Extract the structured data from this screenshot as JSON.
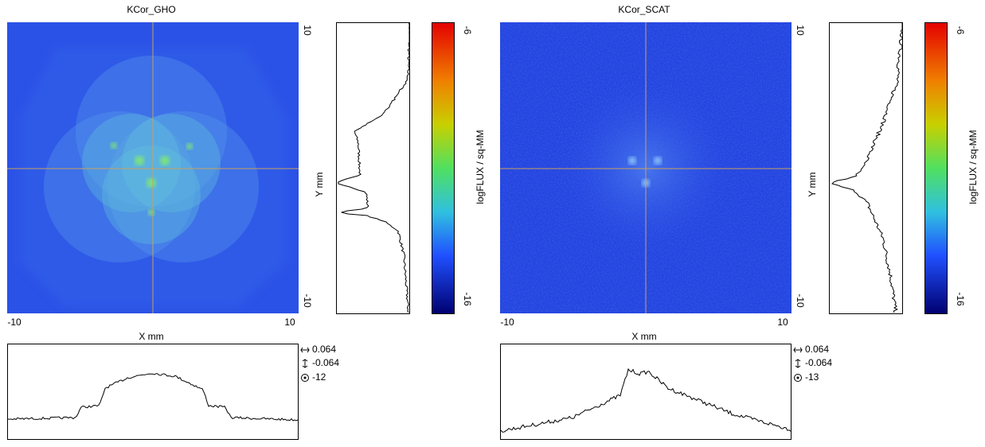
{
  "panels": [
    {
      "title": "KCor_GHO",
      "x_label": "X mm",
      "y_label": "Y mm",
      "x_ticks": [
        "-10",
        "10"
      ],
      "y_ticks": [
        "10",
        "-10"
      ],
      "colorbar_label": "logFLUX / sq-MM",
      "colorbar_ticks": [
        "-6",
        "-16"
      ],
      "readouts": [
        "0.064",
        "-0.064",
        "-12"
      ]
    },
    {
      "title": "KCor_SCAT",
      "x_label": "X mm",
      "y_label": "Y mm",
      "x_ticks": [
        "-10",
        "10"
      ],
      "y_ticks": [
        "10",
        "-10"
      ],
      "colorbar_label": "logFLUX / sq-MM",
      "colorbar_ticks": [
        "-6",
        "-16"
      ],
      "readouts": [
        "0.064",
        "-0.064",
        "-13"
      ]
    }
  ]
}
